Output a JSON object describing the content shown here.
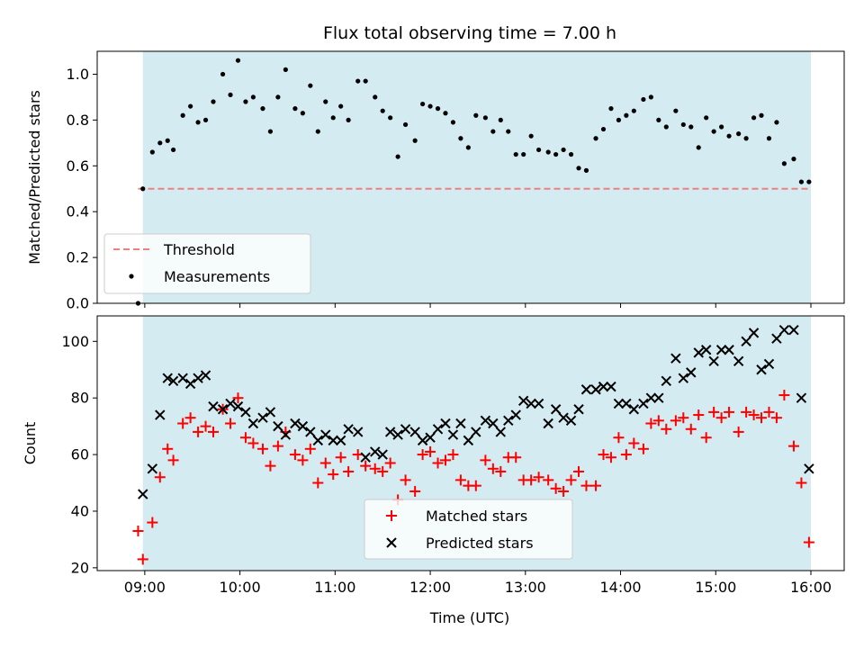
{
  "chart_data": {
    "title": "Flux total observing time = 7.00 h",
    "xlabel": "Time (UTC)",
    "x_ticks": [
      "09:00",
      "10:00",
      "11:00",
      "12:00",
      "13:00",
      "14:00",
      "15:00",
      "16:00"
    ],
    "x_tick_hours": [
      9,
      10,
      11,
      12,
      13,
      14,
      15,
      16
    ],
    "xlim": [
      8.5,
      16.35
    ],
    "observing_window": [
      8.98,
      16.0
    ],
    "colors": {
      "window": "#d3ebf1",
      "threshold": "#f08080",
      "measurements": "#000000",
      "matched": "#ff0000",
      "predicted": "#000000"
    },
    "panels": [
      {
        "type": "scatter",
        "ylabel": "Matched/Predicted stars",
        "ylim": [
          0,
          1.1
        ],
        "y_ticks": [
          "0.0",
          "0.2",
          "0.4",
          "0.6",
          "0.8",
          "1.0"
        ],
        "y_tick_values": [
          0,
          0.2,
          0.4,
          0.6,
          0.8,
          1.0
        ],
        "legend_position": "lower-left",
        "threshold": {
          "name": "Threshold",
          "y": 0.5,
          "x_range": [
            8.93,
            16.0
          ]
        },
        "series": [
          {
            "name": "Measurements",
            "marker": "dot",
            "x": [
              8.93,
              8.98,
              9.08,
              9.16,
              9.24,
              9.3,
              9.4,
              9.48,
              9.56,
              9.64,
              9.72,
              9.82,
              9.9,
              9.98,
              10.06,
              10.14,
              10.24,
              10.32,
              10.4,
              10.48,
              10.58,
              10.66,
              10.74,
              10.82,
              10.9,
              10.98,
              11.06,
              11.14,
              11.24,
              11.32,
              11.42,
              11.5,
              11.58,
              11.66,
              11.74,
              11.84,
              11.92,
              12.0,
              12.08,
              12.16,
              12.24,
              12.32,
              12.4,
              12.48,
              12.58,
              12.66,
              12.74,
              12.82,
              12.9,
              12.98,
              13.06,
              13.14,
              13.24,
              13.32,
              13.4,
              13.48,
              13.56,
              13.64,
              13.74,
              13.82,
              13.9,
              13.98,
              14.06,
              14.14,
              14.24,
              14.32,
              14.4,
              14.48,
              14.58,
              14.66,
              14.74,
              14.82,
              14.9,
              14.98,
              15.06,
              15.14,
              15.24,
              15.32,
              15.4,
              15.48,
              15.56,
              15.64,
              15.72,
              15.82,
              15.9,
              15.98
            ],
            "y": [
              0.0,
              0.5,
              0.66,
              0.7,
              0.71,
              0.67,
              0.82,
              0.86,
              0.79,
              0.8,
              0.88,
              1.0,
              0.91,
              1.06,
              0.88,
              0.9,
              0.85,
              0.75,
              0.9,
              1.02,
              0.85,
              0.83,
              0.95,
              0.75,
              0.88,
              0.81,
              0.86,
              0.8,
              0.97,
              0.97,
              0.9,
              0.84,
              0.81,
              0.64,
              0.78,
              0.71,
              0.87,
              0.86,
              0.85,
              0.83,
              0.79,
              0.72,
              0.68,
              0.82,
              0.81,
              0.75,
              0.8,
              0.75,
              0.65,
              0.65,
              0.73,
              0.67,
              0.66,
              0.65,
              0.67,
              0.65,
              0.59,
              0.58,
              0.72,
              0.76,
              0.85,
              0.8,
              0.82,
              0.84,
              0.89,
              0.9,
              0.8,
              0.77,
              0.84,
              0.78,
              0.77,
              0.68,
              0.81,
              0.75,
              0.77,
              0.73,
              0.74,
              0.72,
              0.81,
              0.82,
              0.72,
              0.79,
              0.61,
              0.63,
              0.53,
              0.53
            ]
          }
        ]
      },
      {
        "type": "scatter",
        "ylabel": "Count",
        "ylim": [
          19,
          109
        ],
        "y_ticks": [
          "20",
          "40",
          "60",
          "80",
          "100"
        ],
        "y_tick_values": [
          20,
          40,
          60,
          80,
          100
        ],
        "legend_position": "lower-center",
        "series": [
          {
            "name": "Matched stars",
            "marker": "plus",
            "x": [
              8.93,
              8.98,
              9.08,
              9.16,
              9.24,
              9.3,
              9.4,
              9.48,
              9.56,
              9.64,
              9.72,
              9.82,
              9.9,
              9.98,
              10.06,
              10.14,
              10.24,
              10.32,
              10.4,
              10.48,
              10.58,
              10.66,
              10.74,
              10.82,
              10.9,
              10.98,
              11.06,
              11.14,
              11.24,
              11.32,
              11.42,
              11.5,
              11.58,
              11.66,
              11.74,
              11.84,
              11.92,
              12.0,
              12.08,
              12.16,
              12.24,
              12.32,
              12.4,
              12.48,
              12.58,
              12.66,
              12.74,
              12.82,
              12.9,
              12.98,
              13.06,
              13.14,
              13.24,
              13.32,
              13.4,
              13.48,
              13.56,
              13.64,
              13.74,
              13.82,
              13.9,
              13.98,
              14.06,
              14.14,
              14.24,
              14.32,
              14.4,
              14.48,
              14.58,
              14.66,
              14.74,
              14.82,
              14.9,
              14.98,
              15.06,
              15.14,
              15.24,
              15.32,
              15.4,
              15.48,
              15.56,
              15.64,
              15.72,
              15.82,
              15.9,
              15.98
            ],
            "y": [
              33,
              23,
              36,
              52,
              62,
              58,
              71,
              73,
              68,
              70,
              68,
              76,
              71,
              80,
              66,
              64,
              62,
              56,
              63,
              68,
              60,
              58,
              62,
              50,
              57,
              53,
              59,
              54,
              60,
              56,
              55,
              54,
              57,
              44,
              51,
              47,
              60,
              61,
              57,
              58,
              60,
              51,
              49,
              49,
              58,
              55,
              54,
              59,
              59,
              51,
              51,
              52,
              51,
              48,
              47,
              51,
              54,
              49,
              49,
              60,
              59,
              66,
              60,
              64,
              62,
              71,
              72,
              69,
              72,
              73,
              69,
              74,
              66,
              75,
              73,
              75,
              68,
              75,
              74,
              73,
              75,
              73,
              81,
              63,
              50,
              29
            ]
          },
          {
            "name": "Predicted stars",
            "marker": "x",
            "x": [
              8.98,
              9.08,
              9.16,
              9.24,
              9.3,
              9.4,
              9.48,
              9.56,
              9.64,
              9.72,
              9.82,
              9.9,
              9.98,
              10.06,
              10.14,
              10.24,
              10.32,
              10.4,
              10.48,
              10.58,
              10.66,
              10.74,
              10.82,
              10.9,
              10.98,
              11.06,
              11.14,
              11.24,
              11.32,
              11.42,
              11.5,
              11.58,
              11.66,
              11.74,
              11.84,
              11.92,
              12.0,
              12.08,
              12.16,
              12.24,
              12.32,
              12.4,
              12.48,
              12.58,
              12.66,
              12.74,
              12.82,
              12.9,
              12.98,
              13.06,
              13.14,
              13.24,
              13.32,
              13.4,
              13.48,
              13.56,
              13.64,
              13.74,
              13.82,
              13.9,
              13.98,
              14.06,
              14.14,
              14.24,
              14.32,
              14.4,
              14.48,
              14.58,
              14.66,
              14.74,
              14.82,
              14.9,
              14.98,
              15.06,
              15.14,
              15.24,
              15.32,
              15.4,
              15.48,
              15.56,
              15.64,
              15.72,
              15.82,
              15.9,
              15.98
            ],
            "y": [
              46,
              55,
              74,
              87,
              86,
              87,
              85,
              87,
              88,
              77,
              76,
              78,
              77,
              75,
              71,
              73,
              75,
              70,
              67,
              71,
              70,
              68,
              65,
              67,
              65,
              65,
              69,
              68,
              59,
              61,
              60,
              68,
              67,
              69,
              68,
              65,
              66,
              69,
              71,
              67,
              71,
              65,
              68,
              72,
              71,
              68,
              72,
              74,
              79,
              78,
              78,
              71,
              76,
              73,
              72,
              76,
              83,
              83,
              84,
              84,
              78,
              78,
              76,
              78,
              80,
              80,
              86,
              94,
              87,
              89,
              96,
              97,
              93,
              97,
              97,
              93,
              100,
              103,
              90,
              92,
              101,
              104,
              104,
              80,
              55
            ]
          }
        ]
      }
    ]
  }
}
